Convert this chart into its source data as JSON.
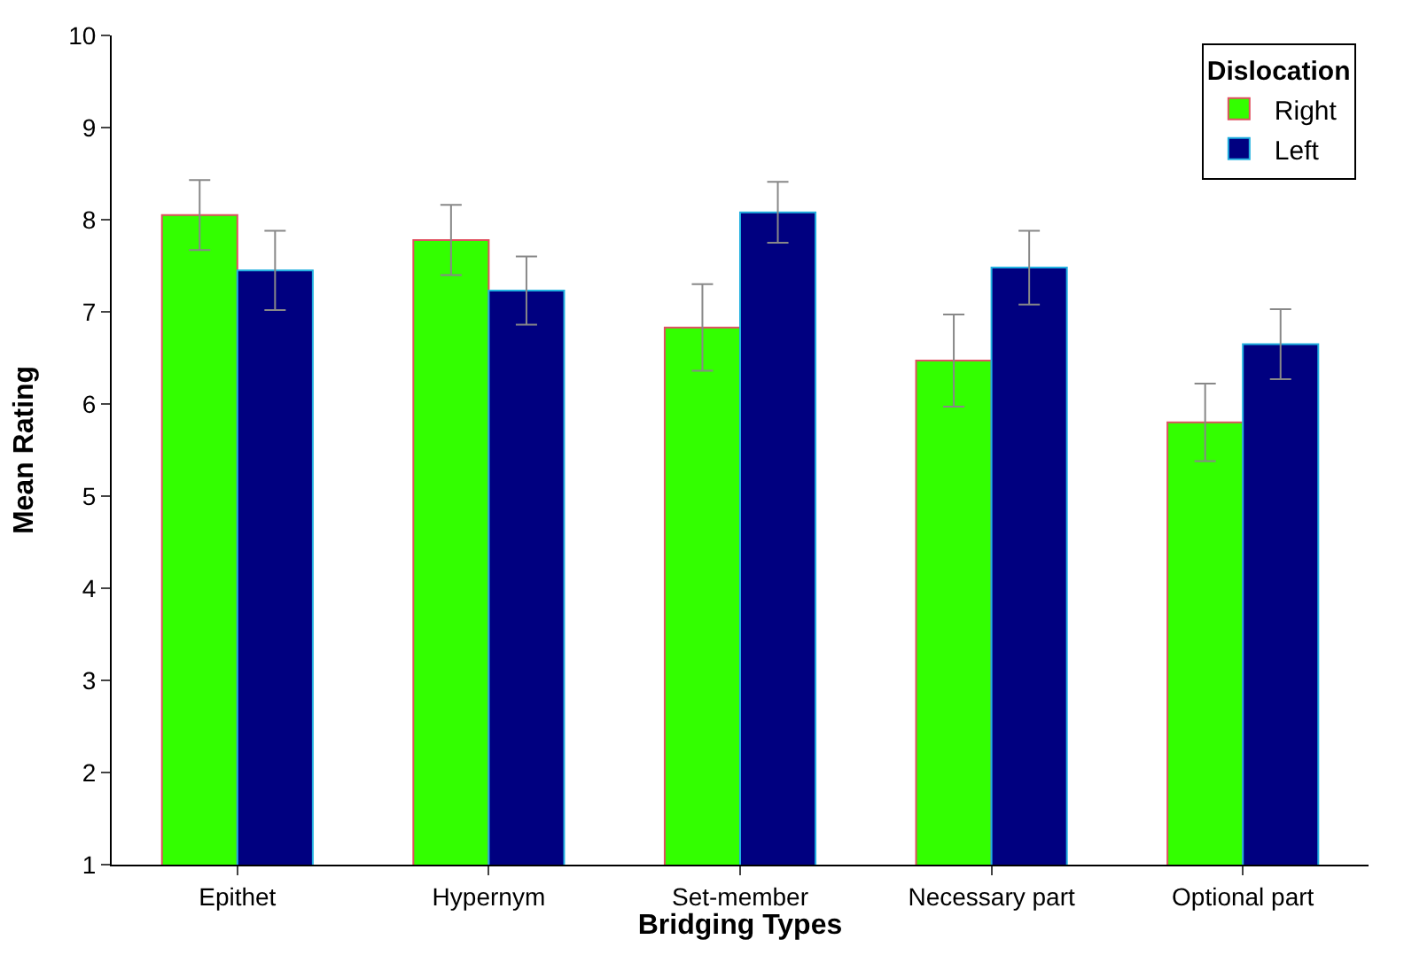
{
  "chart_data": {
    "type": "bar",
    "xlabel": "Bridging Types",
    "ylabel": "Mean Rating",
    "legend_title": "Dislocation",
    "legend": "top right",
    "categories": [
      "Epithet",
      "Hypernym",
      "Set-member",
      "Necessary part",
      "Optional part"
    ],
    "ylim": [
      1,
      10
    ],
    "yticks": [
      1,
      2,
      3,
      4,
      5,
      6,
      7,
      8,
      9,
      10
    ],
    "series": [
      {
        "name": "Right",
        "color": "#33ff00",
        "values": [
          8.05,
          7.78,
          6.83,
          6.47,
          5.8
        ],
        "errors": [
          0.38,
          0.38,
          0.47,
          0.5,
          0.42
        ]
      },
      {
        "name": "Left",
        "color": "#000080",
        "values": [
          7.45,
          7.23,
          8.08,
          7.48,
          6.65
        ],
        "errors": [
          0.43,
          0.37,
          0.33,
          0.4,
          0.38
        ]
      }
    ]
  }
}
